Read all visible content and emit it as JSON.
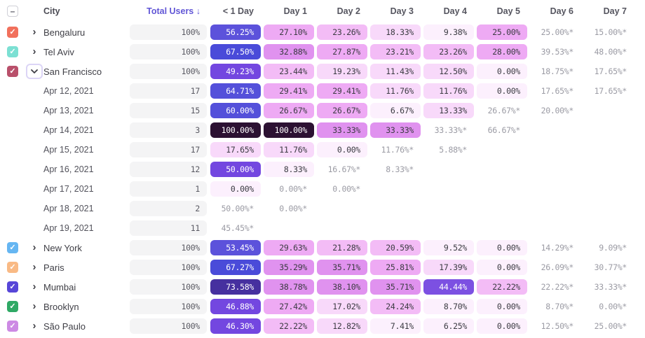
{
  "icons": {
    "checkmark": "✓",
    "minus": "–",
    "chevron_right": "›",
    "sort_down": "↓"
  },
  "header": {
    "select_all_state": "indeterminate",
    "city_label": "City",
    "total_users_label": "Total Users",
    "day_columns": [
      "< 1 Day",
      "Day 1",
      "Day 2",
      "Day 3",
      "Day 4",
      "Day 5",
      "Day 6",
      "Day 7"
    ]
  },
  "heatmap": {
    "stops": [
      {
        "min": 90,
        "bg": "#2c1132",
        "fg": "#ffffff"
      },
      {
        "min": 72,
        "bg": "#46309f",
        "fg": "#ffffff"
      },
      {
        "min": 66,
        "bg": "#4a4bd9",
        "fg": "#ffffff"
      },
      {
        "min": 58,
        "bg": "#5450da",
        "fg": "#ffffff"
      },
      {
        "min": 52,
        "bg": "#5c52db",
        "fg": "#ffffff"
      },
      {
        "min": 46,
        "bg": "#7347e0",
        "fg": "#ffffff"
      },
      {
        "min": 40,
        "bg": "#7c50e2",
        "fg": "#ffffff"
      },
      {
        "min": 32,
        "bg": "#e092ef",
        "fg": "#3b3b42"
      },
      {
        "min": 25,
        "bg": "#eeaaf4",
        "fg": "#3b3b42"
      },
      {
        "min": 20,
        "bg": "#f3bcf6",
        "fg": "#3b3b42"
      },
      {
        "min": 10,
        "bg": "#f8d9fa",
        "fg": "#3b3b42"
      },
      {
        "min": 0,
        "bg": "#fcf0fd",
        "fg": "#3b3b42"
      }
    ],
    "incomplete_text_color": "#9b9ba4"
  },
  "rows": [
    {
      "type": "group",
      "name": "Bengaluru",
      "checkbox_color": "#f1705c",
      "checked": true,
      "expanded": false,
      "total": "100%",
      "cells": [
        "56.25%",
        "27.10%",
        "23.26%",
        "18.33%",
        "9.38%",
        "25.00%",
        "25.00%*",
        "15.00%*"
      ]
    },
    {
      "type": "group",
      "name": "Tel Aviv",
      "checkbox_color": "#7ce0d3",
      "checked": true,
      "expanded": false,
      "total": "100%",
      "cells": [
        "67.50%",
        "32.88%",
        "27.87%",
        "23.21%",
        "23.26%",
        "28.00%",
        "39.53%*",
        "48.00%*"
      ]
    },
    {
      "type": "group",
      "name": "San Francisco",
      "checkbox_color": "#b9506b",
      "checked": true,
      "expanded": true,
      "total": "100%",
      "cells": [
        "49.23%",
        "23.44%",
        "19.23%",
        "11.43%",
        "12.50%",
        "0.00%",
        "18.75%*",
        "17.65%*"
      ]
    },
    {
      "type": "subrow",
      "name": "Apr 12, 2021",
      "total": "17",
      "cells": [
        "64.71%",
        "29.41%",
        "29.41%",
        "11.76%",
        "11.76%",
        "0.00%",
        "17.65%*",
        "17.65%*"
      ]
    },
    {
      "type": "subrow",
      "name": "Apr 13, 2021",
      "total": "15",
      "cells": [
        "60.00%",
        "26.67%",
        "26.67%",
        "6.67%",
        "13.33%",
        "26.67%*",
        "20.00%*",
        ""
      ]
    },
    {
      "type": "subrow",
      "name": "Apr 14, 2021",
      "total": "3",
      "cells": [
        "100.00%",
        "100.00%",
        "33.33%",
        "33.33%",
        "33.33%*",
        "66.67%*",
        "",
        ""
      ]
    },
    {
      "type": "subrow",
      "name": "Apr 15, 2021",
      "total": "17",
      "cells": [
        "17.65%",
        "11.76%",
        "0.00%",
        "11.76%*",
        "5.88%*",
        "",
        "",
        ""
      ]
    },
    {
      "type": "subrow",
      "name": "Apr 16, 2021",
      "total": "12",
      "cells": [
        "50.00%",
        "8.33%",
        "16.67%*",
        "8.33%*",
        "",
        "",
        "",
        ""
      ]
    },
    {
      "type": "subrow",
      "name": "Apr 17, 2021",
      "total": "1",
      "cells": [
        "0.00%",
        "0.00%*",
        "0.00%*",
        "",
        "",
        "",
        "",
        ""
      ]
    },
    {
      "type": "subrow",
      "name": "Apr 18, 2021",
      "total": "2",
      "cells": [
        "50.00%*",
        "0.00%*",
        "",
        "",
        "",
        "",
        "",
        ""
      ]
    },
    {
      "type": "subrow",
      "name": "Apr 19, 2021",
      "total": "11",
      "cells": [
        "45.45%*",
        "",
        "",
        "",
        "",
        "",
        "",
        ""
      ]
    },
    {
      "type": "group",
      "name": "New York",
      "checkbox_color": "#66b6f2",
      "checked": true,
      "expanded": false,
      "total": "100%",
      "cells": [
        "53.45%",
        "29.63%",
        "21.28%",
        "20.59%",
        "9.52%",
        "0.00%",
        "14.29%*",
        "9.09%*"
      ]
    },
    {
      "type": "group",
      "name": "Paris",
      "checkbox_color": "#f9ba85",
      "checked": true,
      "expanded": false,
      "total": "100%",
      "cells": [
        "67.27%",
        "35.29%",
        "35.71%",
        "25.81%",
        "17.39%",
        "0.00%",
        "26.09%*",
        "30.77%*"
      ]
    },
    {
      "type": "group",
      "name": "Mumbai",
      "checkbox_color": "#5746d8",
      "checked": true,
      "expanded": false,
      "total": "100%",
      "cells": [
        "73.58%",
        "38.78%",
        "38.10%",
        "35.71%",
        "44.44%",
        "22.22%",
        "22.22%*",
        "33.33%*"
      ]
    },
    {
      "type": "group",
      "name": "Brooklyn",
      "checkbox_color": "#2fa965",
      "checked": true,
      "expanded": false,
      "total": "100%",
      "cells": [
        "46.88%",
        "27.42%",
        "17.02%",
        "24.24%",
        "8.70%",
        "0.00%",
        "8.70%*",
        "0.00%*"
      ]
    },
    {
      "type": "group",
      "name": "São Paulo",
      "checkbox_color": "#cd8ae4",
      "checked": true,
      "expanded": false,
      "total": "100%",
      "cells": [
        "46.30%",
        "22.22%",
        "12.82%",
        "7.41%",
        "6.25%",
        "0.00%",
        "12.50%*",
        "25.00%*"
      ]
    }
  ]
}
